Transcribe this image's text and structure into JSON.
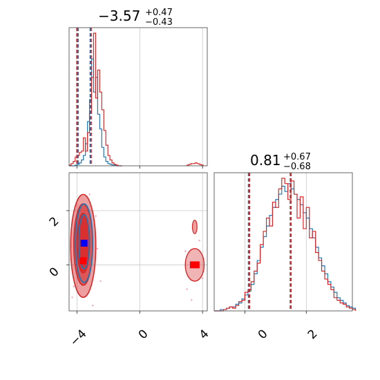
{
  "colors": {
    "blue": "#1f77b4",
    "red": "#d62728"
  },
  "chart_data": [
    {
      "panel": "top-left",
      "type": "area",
      "subtype": "histogram-1d",
      "title": {
        "value": "−3.57",
        "plus": "+0.47",
        "minus": "−0.43"
      },
      "xlim": [
        -4.5,
        4.3
      ],
      "grid": true,
      "quantile_lines": {
        "blue": [
          -3.93,
          -3.15
        ],
        "red": [
          -4.0,
          -3.1
        ]
      },
      "series": [
        {
          "color": "blue",
          "bin_start": -4.5,
          "bin_width": 0.13,
          "counts": [
            0,
            0,
            0,
            1,
            2,
            4,
            8,
            14,
            30,
            60,
            90,
            145,
            100,
            120,
            70,
            50,
            25,
            12,
            6,
            3,
            2,
            1,
            1,
            0,
            0,
            0
          ]
        },
        {
          "color": "red",
          "bin_start": -4.5,
          "bin_width": 0.13,
          "counts": [
            1,
            3,
            6,
            12,
            14,
            18,
            20,
            38,
            20,
            45,
            72,
            120,
            180,
            92,
            130,
            100,
            76,
            48,
            28,
            14,
            8,
            4,
            2,
            1,
            0,
            0
          ],
          "secondary_bin_start": 3.0,
          "secondary_counts": [
            1,
            2,
            3,
            3,
            4,
            3,
            2,
            1
          ]
        }
      ]
    },
    {
      "panel": "bottom-left",
      "type": "heatmap",
      "subtype": "2d-contour",
      "xlim": [
        -4.5,
        4.3
      ],
      "ylim": [
        -1.7,
        3.4
      ],
      "xticks": [
        "−4",
        "0",
        "4"
      ],
      "yticks": [
        "0",
        "2"
      ],
      "grid": true,
      "red_levels": [
        {
          "cx": -3.6,
          "cy": 0.7,
          "rx": 0.8,
          "ry": 1.9,
          "fill_opacity": 0.45
        },
        {
          "cx": -3.6,
          "cy": 0.75,
          "rx": 0.6,
          "ry": 1.5,
          "fill_opacity": 0.6
        },
        {
          "cx": -3.6,
          "cy": 0.8,
          "rx": 0.4,
          "ry": 1.1,
          "fill_opacity": 0.8
        }
      ],
      "red_secondary": {
        "cx": 3.5,
        "cy": 0.0,
        "rx": 0.6,
        "ry": 0.6
      },
      "red_secondary_blob": {
        "cx": 3.5,
        "cy": 1.4,
        "rx": 0.15,
        "ry": 0.25
      },
      "blue_levels": [
        {
          "cx": -3.55,
          "cy": 0.8,
          "rx": 0.55,
          "ry": 1.45
        },
        {
          "cx": -3.55,
          "cy": 0.85,
          "rx": 0.35,
          "ry": 1.0
        }
      ],
      "red_marker": {
        "x": -3.6,
        "y": 0.15
      },
      "blue_marker": {
        "x": -3.55,
        "y": 0.8
      }
    },
    {
      "panel": "bottom-right",
      "type": "area",
      "subtype": "histogram-1d",
      "title": {
        "value": "0.81",
        "plus": "+0.67",
        "minus": "−0.68"
      },
      "xlim": [
        -1.0,
        3.5
      ],
      "xticks": [
        "0",
        "2"
      ],
      "grid": true,
      "quantile_lines": {
        "blue": [
          0.12,
          1.48
        ],
        "red": [
          0.15,
          1.5
        ]
      },
      "series": [
        {
          "color": "blue",
          "bin_start": -1.0,
          "bin_width": 0.1,
          "counts": [
            0,
            0,
            1,
            1,
            2,
            3,
            3,
            5,
            6,
            9,
            12,
            15,
            20,
            28,
            38,
            48,
            56,
            64,
            72,
            78,
            84,
            88,
            94,
            90,
            96,
            92,
            88,
            84,
            80,
            74,
            70,
            62,
            55,
            48,
            40,
            34,
            28,
            22,
            18,
            14,
            10,
            8,
            6,
            4,
            3,
            2
          ]
        },
        {
          "color": "red",
          "bin_start": -1.0,
          "bin_width": 0.1,
          "counts": [
            0,
            0,
            0,
            1,
            2,
            3,
            2,
            4,
            7,
            8,
            14,
            16,
            22,
            30,
            36,
            50,
            60,
            70,
            64,
            82,
            78,
            92,
            100,
            96,
            84,
            98,
            88,
            70,
            86,
            62,
            78,
            55,
            60,
            44,
            38,
            30,
            24,
            20,
            16,
            10,
            8,
            6,
            5,
            3,
            2,
            1
          ]
        }
      ]
    }
  ]
}
